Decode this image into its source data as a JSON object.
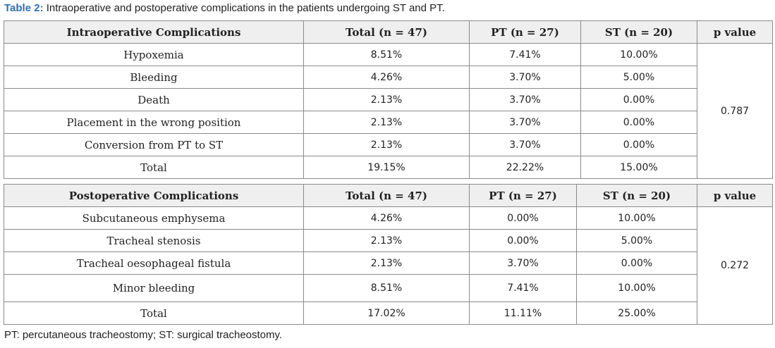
{
  "caption": {
    "label": "Table 2:",
    "text": " Intraoperative and postoperative complications in the patients undergoing ST and PT."
  },
  "intraoperative": {
    "headers": [
      "Intraoperative Complications",
      "Total (n = 47)",
      "PT (n = 27)",
      "ST (n = 20)",
      "p value"
    ],
    "rows": [
      {
        "label": "Hypoxemia",
        "total": "8.51%",
        "pt": "7.41%",
        "st": "10.00%"
      },
      {
        "label": "Bleeding",
        "total": "4.26%",
        "pt": "3.70%",
        "st": "5.00%"
      },
      {
        "label": "Death",
        "total": "2.13%",
        "pt": "3.70%",
        "st": "0.00%"
      },
      {
        "label": "Placement in the wrong position",
        "total": "2.13%",
        "pt": "3.70%",
        "st": "0.00%"
      },
      {
        "label": "Conversion from PT to ST",
        "total": "2.13%",
        "pt": "3.70%",
        "st": "0.00%"
      },
      {
        "label": "Total",
        "total": "19.15%",
        "pt": "22.22%",
        "st": "15.00%"
      }
    ],
    "p_value": "0.787"
  },
  "postoperative": {
    "headers": [
      "Postoperative Complications",
      "Total (n = 47)",
      "PT (n = 27)",
      "ST (n = 20)",
      "p value"
    ],
    "rows": [
      {
        "label": "Subcutaneous emphysema",
        "total": "4.26%",
        "pt": "0.00%",
        "st": "10.00%"
      },
      {
        "label": "Tracheal stenosis",
        "total": "2.13%",
        "pt": "0.00%",
        "st": "5.00%"
      },
      {
        "label": "Tracheal oesophageal fistula",
        "total": "2.13%",
        "pt": "3.70%",
        "st": "0.00%"
      },
      {
        "label": "Minor bleeding",
        "total": "8.51%",
        "pt": "7.41%",
        "st": "10.00%"
      },
      {
        "label": "Total",
        "total": "17.02%",
        "pt": "11.11%",
        "st": "25.00%"
      }
    ],
    "p_value": "0.272"
  },
  "footnote": "PT: percutaneous tracheostomy; ST: surgical tracheostomy."
}
